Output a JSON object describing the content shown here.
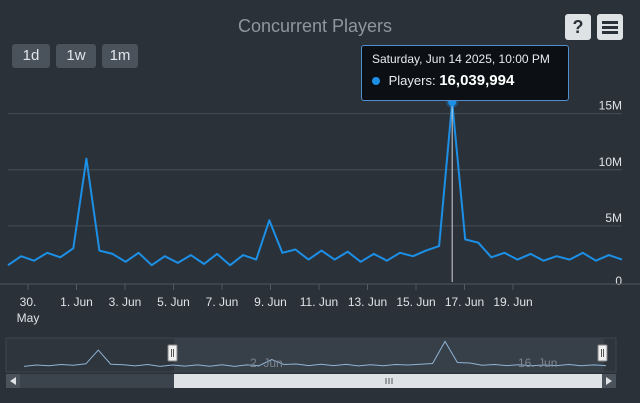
{
  "title": "Concurrent Players",
  "zoom_buttons": [
    "1d",
    "1w",
    "1m"
  ],
  "help_label": "?",
  "tooltip": {
    "date": "Saturday, Jun 14 2025, 10:00 PM",
    "series_label": "Players:",
    "value_text": "16,039,994"
  },
  "colors": {
    "series": "#1c8fe6",
    "background": "#2b3138"
  },
  "chart_data": {
    "type": "line",
    "title": "Concurrent Players",
    "series": [
      {
        "name": "Players",
        "x": [
          "May 29",
          "May 29 12h",
          "May 30",
          "May 30 12h",
          "May 31",
          "May 31 12h",
          "Jun 1",
          "Jun 1 12h",
          "Jun 2",
          "Jun 2 12h",
          "Jun 3",
          "Jun 3 12h",
          "Jun 4",
          "Jun 4 12h",
          "Jun 5",
          "Jun 5 12h",
          "Jun 6",
          "Jun 6 12h",
          "Jun 7",
          "Jun 7 12h",
          "Jun 8",
          "Jun 8 12h",
          "Jun 9",
          "Jun 9 12h",
          "Jun 10",
          "Jun 10 12h",
          "Jun 11",
          "Jun 11 12h",
          "Jun 12",
          "Jun 12 12h",
          "Jun 13",
          "Jun 13 12h",
          "Jun 14",
          "Jun 14 12h",
          "Jun 14 22h",
          "Jun 15",
          "Jun 15 12h",
          "Jun 16",
          "Jun 16 12h",
          "Jun 17",
          "Jun 17 12h",
          "Jun 18",
          "Jun 18 12h",
          "Jun 19",
          "Jun 19 12h",
          "Jun 20",
          "Jun 20 12h",
          "Jun 21"
        ],
        "values": [
          1.5,
          2.3,
          1.9,
          2.6,
          2.2,
          3.0,
          11.0,
          2.8,
          2.5,
          1.8,
          2.6,
          1.5,
          2.3,
          1.7,
          2.4,
          1.6,
          2.5,
          1.5,
          2.4,
          2.0,
          5.5,
          2.6,
          2.9,
          2.0,
          2.8,
          2.0,
          2.7,
          1.8,
          2.5,
          1.9,
          2.6,
          2.3,
          2.8,
          3.2,
          16.039994,
          3.8,
          3.5,
          2.2,
          2.6,
          2.0,
          2.5,
          1.9,
          2.3,
          2.0,
          2.6,
          1.9,
          2.4,
          2.0
        ]
      }
    ],
    "y_ticks": [
      "0",
      "5M",
      "10M",
      "15M"
    ],
    "x_ticks": [
      "30.",
      "1. Jun",
      "3. Jun",
      "5. Jun",
      "7. Jun",
      "9. Jun",
      "11. Jun",
      "13. Jun",
      "15. Jun",
      "17. Jun",
      "19. Jun"
    ],
    "x_tick_sub": "May",
    "navigator_labels": [
      "2. Jun",
      "16. Jun"
    ],
    "ylim": [
      0,
      18
    ],
    "grid": true,
    "highlighted_point": "Jun 14 22h"
  }
}
